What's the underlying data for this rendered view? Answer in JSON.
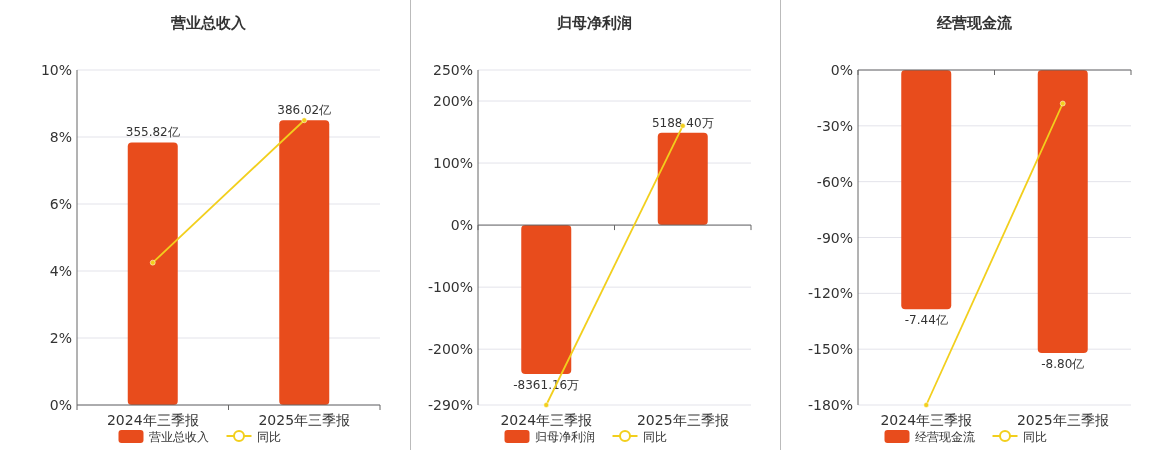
{
  "chart_data": [
    {
      "type": "bar",
      "title": "营业总收入",
      "categories": [
        "2024年三季报",
        "2025年三季报"
      ],
      "series": [
        {
          "name": "营业总收入",
          "type": "bar",
          "color": "#e84c1c",
          "axis": "y2",
          "values": [
            355.82,
            386.02
          ],
          "value_labels": [
            "355.82亿",
            "386.02亿"
          ]
        },
        {
          "name": "同比",
          "type": "line",
          "color": "#f2cf1d",
          "values": [
            4.25,
            8.5
          ]
        }
      ],
      "ylim": [
        0,
        10
      ],
      "yticks": [
        {
          "value": 0,
          "label": "0%"
        },
        {
          "value": 2,
          "label": "2%"
        },
        {
          "value": 4,
          "label": "4%"
        },
        {
          "value": 6,
          "label": "6%"
        },
        {
          "value": 8,
          "label": "8%"
        },
        {
          "value": 10,
          "label": "10%"
        }
      ],
      "y2lim": [
        0,
        454
      ],
      "grid": "y",
      "legend": "bottom",
      "marker": "circle"
    },
    {
      "type": "bar",
      "title": "归母净利润",
      "categories": [
        "2024年三季报",
        "2025年三季报"
      ],
      "series": [
        {
          "name": "归母净利润",
          "type": "bar",
          "color": "#e84c1c",
          "axis": "y2",
          "values": [
            -8361.16,
            5188.4
          ],
          "value_labels": [
            "-8361.16万",
            "5188.40万"
          ]
        },
        {
          "name": "同比",
          "type": "line",
          "color": "#f2cf1d",
          "values": [
            -290,
            160
          ]
        }
      ],
      "ylim": [
        -290,
        250
      ],
      "yticks": [
        {
          "value": -290,
          "label": "-290%"
        },
        {
          "value": -200,
          "label": "-200%"
        },
        {
          "value": -100,
          "label": "-100%"
        },
        {
          "value": 0,
          "label": "0%"
        },
        {
          "value": 100,
          "label": "100%"
        },
        {
          "value": 200,
          "label": "200%"
        },
        {
          "value": 250,
          "label": "250%"
        }
      ],
      "y2lim": [
        -10103,
        8710
      ],
      "grid": "y",
      "legend": "bottom",
      "marker": "circle"
    },
    {
      "type": "bar",
      "title": "经营现金流",
      "categories": [
        "2024年三季报",
        "2025年三季报"
      ],
      "series": [
        {
          "name": "经营现金流",
          "type": "bar",
          "color": "#e84c1c",
          "axis": "y2",
          "values": [
            -7.44,
            -8.8
          ],
          "value_labels": [
            "-7.44亿",
            "-8.80亿"
          ]
        },
        {
          "name": "同比",
          "type": "line",
          "color": "#f2cf1d",
          "values": [
            -180,
            -18
          ]
        }
      ],
      "ylim": [
        -180,
        0
      ],
      "yticks": [
        {
          "value": -180,
          "label": "-180%"
        },
        {
          "value": -150,
          "label": "-150%"
        },
        {
          "value": -120,
          "label": "-120%"
        },
        {
          "value": -90,
          "label": "-90%"
        },
        {
          "value": -60,
          "label": "-60%"
        },
        {
          "value": -30,
          "label": "-30%"
        },
        {
          "value": 0,
          "label": "0%"
        }
      ],
      "y2lim": [
        -10.42,
        0
      ],
      "grid": "y",
      "legend": "bottom",
      "marker": "circle"
    }
  ]
}
